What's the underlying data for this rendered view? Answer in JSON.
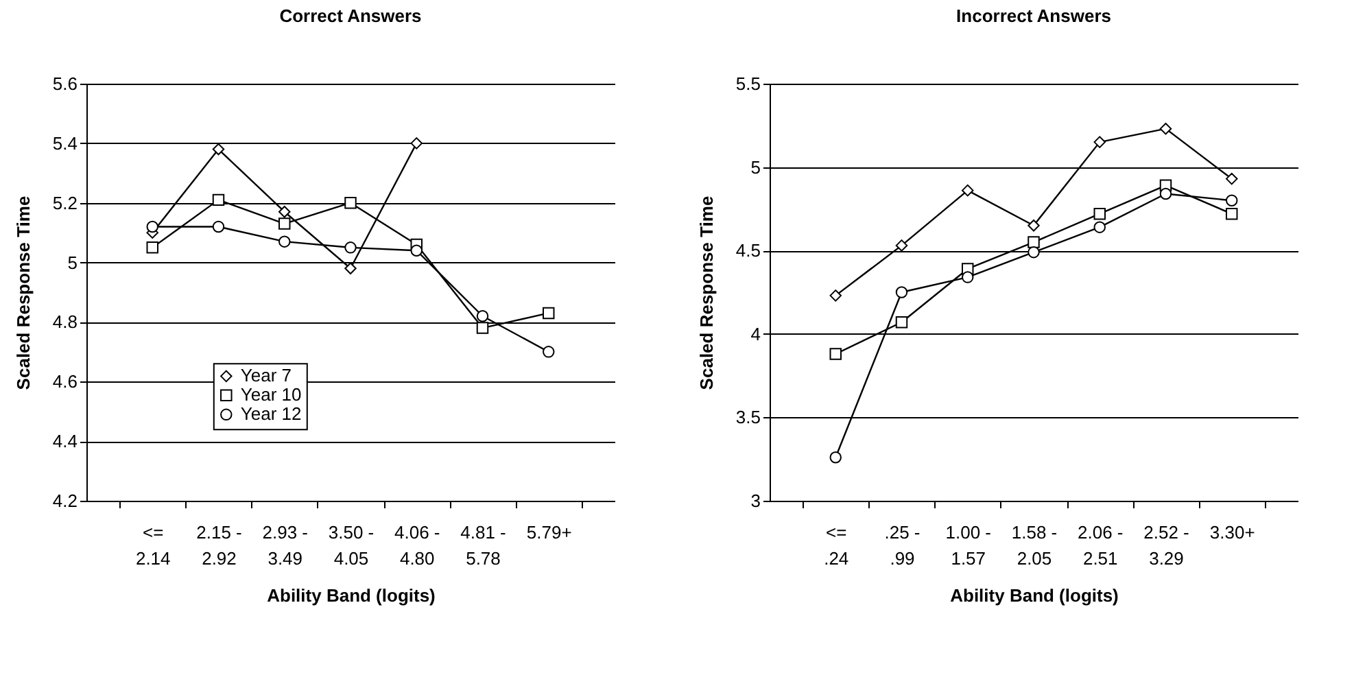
{
  "chart_data": [
    {
      "type": "line",
      "title": "Correct Answers",
      "xlabel": "Ability Band (logits)",
      "ylabel": "Scaled Response Time",
      "categories": [
        "<=\n2.14",
        "2.15 -\n2.92",
        "2.93 -\n3.49",
        "3.50 -\n4.05",
        "4.06 -\n4.80",
        "4.81 -\n5.78",
        "5.79+"
      ],
      "series": [
        {
          "name": "Year 7",
          "color": "#000000",
          "marker": "diamond",
          "values": [
            5.1,
            5.38,
            5.17,
            4.98,
            5.4,
            null,
            null
          ]
        },
        {
          "name": "Year 10",
          "color": "#000000",
          "marker": "square",
          "values": [
            5.05,
            5.21,
            5.13,
            5.2,
            5.06,
            4.78,
            4.83
          ]
        },
        {
          "name": "Year 12",
          "color": "#000000",
          "marker": "circle",
          "values": [
            5.12,
            5.12,
            5.07,
            5.05,
            5.04,
            4.82,
            4.7
          ]
        }
      ],
      "ylim": [
        4.2,
        5.6
      ],
      "yticks": [
        4.2,
        4.4,
        4.6,
        4.8,
        5,
        5.2,
        5.4,
        5.6
      ],
      "grid": "y",
      "legend": "bottom"
    },
    {
      "type": "line",
      "title": "Incorrect Answers",
      "xlabel": "Ability Band (logits)",
      "ylabel": "Scaled Response Time",
      "categories": [
        "<=\n.24",
        ".25 -\n.99",
        "1.00 -\n1.57",
        "1.58 -\n2.05",
        "2.06 -\n2.51",
        "2.52 -\n3.29",
        "3.30+"
      ],
      "series": [
        {
          "name": "Year 7",
          "color": "#000000",
          "marker": "diamond",
          "values": [
            4.23,
            4.53,
            4.86,
            4.65,
            5.15,
            5.23,
            4.93
          ]
        },
        {
          "name": "Year 10",
          "color": "#000000",
          "marker": "square",
          "values": [
            3.88,
            4.07,
            4.39,
            4.55,
            4.72,
            4.89,
            4.72
          ]
        },
        {
          "name": "Year 12",
          "color": "#000000",
          "marker": "circle",
          "values": [
            3.26,
            4.25,
            4.34,
            4.49,
            4.64,
            4.84,
            4.8
          ]
        }
      ],
      "ylim": [
        3,
        5.5
      ],
      "yticks": [
        3,
        3.5,
        4,
        4.5,
        5,
        5.5
      ],
      "grid": "y",
      "legend": "center"
    }
  ]
}
